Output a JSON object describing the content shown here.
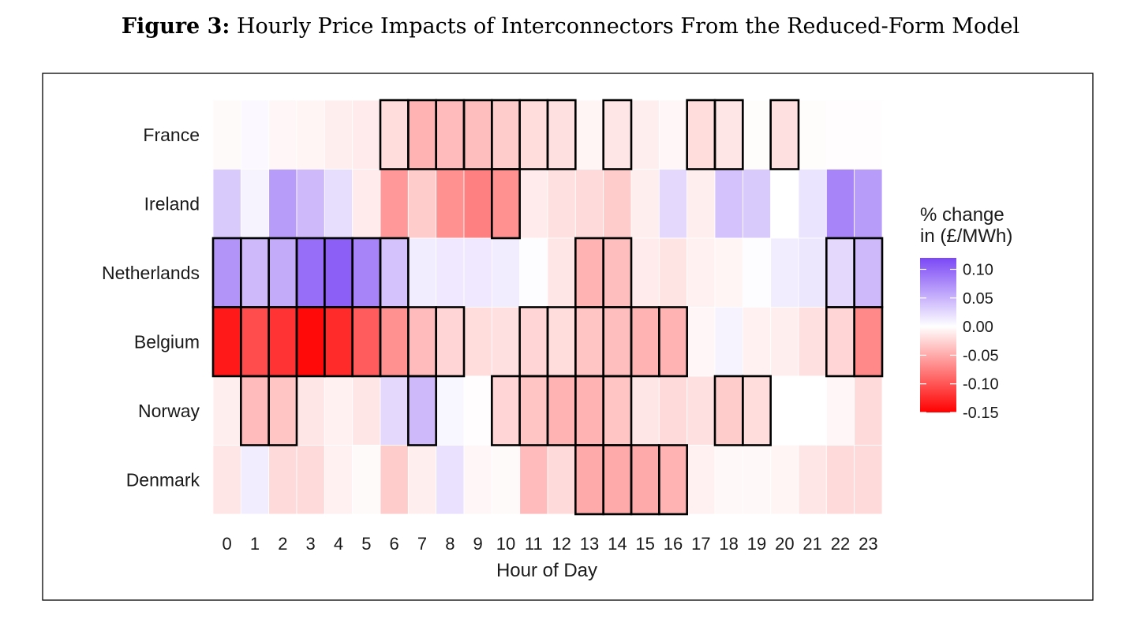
{
  "caption": {
    "label": "Figure 3:",
    "text": "Hourly Price Impacts of Interconnectors From the Reduced-Form Model"
  },
  "chart_data": {
    "type": "heatmap",
    "xlabel": "Hour of Day",
    "ylabel": "",
    "x": [
      0,
      1,
      2,
      3,
      4,
      5,
      6,
      7,
      8,
      9,
      10,
      11,
      12,
      13,
      14,
      15,
      16,
      17,
      18,
      19,
      20,
      21,
      22,
      23
    ],
    "y": [
      "France",
      "Ireland",
      "Netherlands",
      "Belgium",
      "Norway",
      "Denmark"
    ],
    "legend": {
      "title_line1": "% change",
      "title_line2": "in (£/MWh)",
      "ticks": [
        "0.10",
        "0.05",
        "0.00",
        "-0.05",
        "-0.10",
        "-0.15"
      ],
      "range": [
        -0.15,
        0.12
      ],
      "placement": "right",
      "color_high": "#7b48f5",
      "color_mid": "#ffffff",
      "color_low": "#ff0000"
    },
    "series": [
      {
        "name": "France",
        "values": [
          -0.003,
          0.004,
          -0.005,
          -0.006,
          -0.01,
          -0.012,
          -0.02,
          -0.045,
          -0.04,
          -0.038,
          -0.03,
          -0.02,
          -0.018,
          -0.006,
          -0.015,
          -0.01,
          -0.005,
          -0.02,
          -0.015,
          -0.002,
          -0.018,
          -0.002,
          -0.001,
          -0.001
        ],
        "significant": [
          false,
          false,
          false,
          false,
          false,
          false,
          true,
          true,
          true,
          true,
          true,
          true,
          true,
          false,
          true,
          false,
          false,
          true,
          true,
          false,
          true,
          false,
          false,
          false
        ]
      },
      {
        "name": "Ireland",
        "values": [
          0.035,
          0.008,
          0.065,
          0.045,
          0.022,
          -0.012,
          -0.06,
          -0.03,
          -0.065,
          -0.075,
          -0.065,
          -0.012,
          -0.018,
          -0.022,
          -0.03,
          -0.01,
          0.025,
          -0.01,
          0.04,
          0.035,
          0.0,
          0.018,
          0.08,
          0.065
        ],
        "significant": [
          false,
          false,
          false,
          false,
          false,
          false,
          false,
          false,
          false,
          false,
          true,
          false,
          false,
          false,
          false,
          false,
          false,
          false,
          false,
          false,
          false,
          false,
          false,
          false
        ]
      },
      {
        "name": "Netherlands",
        "values": [
          0.07,
          0.045,
          0.055,
          0.095,
          0.105,
          0.08,
          0.04,
          0.012,
          0.015,
          0.015,
          0.012,
          0.002,
          -0.015,
          -0.045,
          -0.038,
          -0.012,
          -0.016,
          -0.008,
          -0.006,
          0.002,
          0.012,
          0.016,
          0.025,
          0.045
        ],
        "significant": [
          true,
          true,
          true,
          true,
          true,
          true,
          true,
          false,
          false,
          false,
          false,
          false,
          false,
          true,
          true,
          false,
          false,
          false,
          false,
          false,
          false,
          false,
          true,
          true
        ]
      },
      {
        "name": "Belgium",
        "values": [
          -0.135,
          -0.105,
          -0.12,
          -0.145,
          -0.125,
          -0.095,
          -0.065,
          -0.04,
          -0.025,
          -0.02,
          -0.018,
          -0.025,
          -0.02,
          -0.035,
          -0.038,
          -0.045,
          -0.045,
          -0.005,
          0.008,
          -0.008,
          -0.01,
          -0.018,
          -0.025,
          -0.07
        ],
        "significant": [
          true,
          true,
          true,
          true,
          true,
          true,
          true,
          true,
          true,
          false,
          false,
          true,
          true,
          true,
          true,
          true,
          true,
          false,
          false,
          false,
          false,
          false,
          true,
          true
        ]
      },
      {
        "name": "Norway",
        "values": [
          -0.01,
          -0.04,
          -0.035,
          -0.015,
          -0.008,
          -0.015,
          0.025,
          0.045,
          0.006,
          -0.001,
          -0.025,
          -0.035,
          -0.045,
          -0.045,
          -0.035,
          -0.015,
          -0.022,
          -0.018,
          -0.03,
          -0.02,
          0.0,
          0.0,
          -0.005,
          -0.022
        ],
        "significant": [
          false,
          true,
          true,
          false,
          false,
          false,
          false,
          true,
          false,
          false,
          true,
          true,
          true,
          true,
          true,
          false,
          false,
          false,
          true,
          true,
          false,
          false,
          false,
          false
        ]
      },
      {
        "name": "Denmark",
        "values": [
          -0.015,
          0.012,
          -0.022,
          -0.022,
          -0.008,
          -0.003,
          -0.03,
          -0.01,
          0.02,
          -0.005,
          -0.003,
          -0.04,
          -0.022,
          -0.05,
          -0.05,
          -0.05,
          -0.045,
          -0.008,
          -0.004,
          -0.004,
          -0.006,
          -0.015,
          -0.022,
          -0.022
        ],
        "significant": [
          false,
          false,
          false,
          false,
          false,
          false,
          false,
          false,
          false,
          false,
          false,
          false,
          false,
          true,
          true,
          true,
          true,
          false,
          false,
          false,
          false,
          false,
          false,
          false
        ]
      }
    ]
  }
}
